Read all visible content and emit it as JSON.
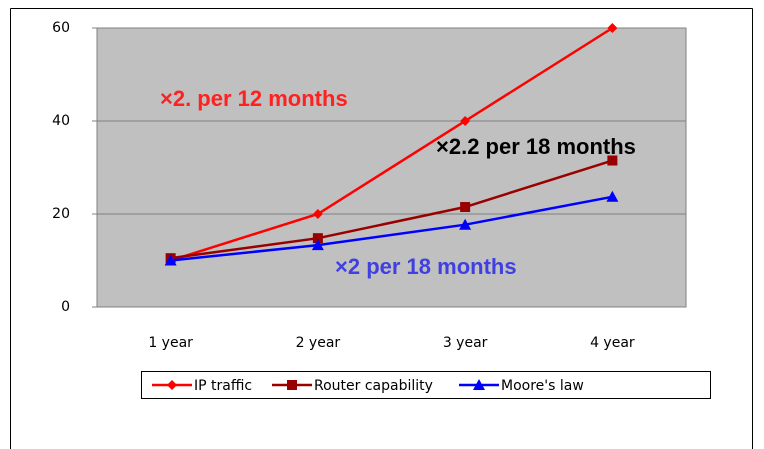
{
  "chart_data": {
    "type": "line",
    "categories": [
      "1 year",
      "2 year",
      "3 year",
      "4 year"
    ],
    "series": [
      {
        "name": "IP traffic",
        "color": "#ff0000",
        "marker": "diamond",
        "values": [
          10,
          20,
          40,
          60
        ]
      },
      {
        "name": "Router capability",
        "color": "#990000",
        "marker": "square",
        "values": [
          10.5,
          14.8,
          21.5,
          31.5
        ]
      },
      {
        "name": "Moore's law",
        "color": "#0000ff",
        "marker": "triangle",
        "values": [
          10,
          13.3,
          17.7,
          23.7
        ]
      }
    ],
    "ylim": [
      0,
      60
    ],
    "yticks": [
      0,
      20,
      40,
      60
    ],
    "grid": true,
    "legend": "bottom",
    "annotations": [
      {
        "text": "×2. per 12 months",
        "color": "#ff2020"
      },
      {
        "text": "×2.2 per 18 months",
        "color": "#000000"
      },
      {
        "text": "×2 per 18 months",
        "color": "#4040e0"
      }
    ]
  }
}
